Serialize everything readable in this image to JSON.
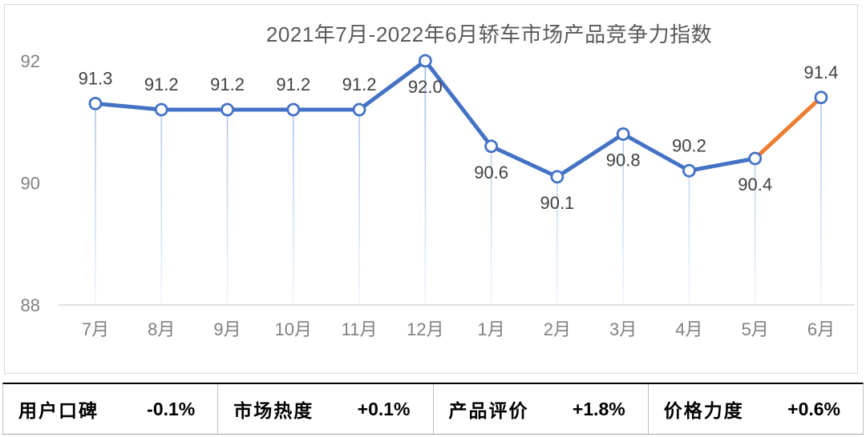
{
  "chart_data": {
    "type": "line",
    "title": "2021年7月-2022年6月轿车市场产品竞争力指数",
    "categories": [
      "7月",
      "8月",
      "9月",
      "10月",
      "11月",
      "12月",
      "1月",
      "2月",
      "3月",
      "4月",
      "5月",
      "6月"
    ],
    "series": [
      {
        "name": "轿车市场产品竞争力指数",
        "values": [
          91.3,
          91.2,
          91.2,
          91.2,
          91.2,
          92.0,
          90.6,
          90.1,
          90.8,
          90.2,
          90.4,
          91.4
        ]
      }
    ],
    "data_labels": [
      "91.3",
      "91.2",
      "91.2",
      "91.2",
      "91.2",
      "92.0",
      "90.6",
      "90.1",
      "90.8",
      "90.2",
      "90.4",
      "91.4"
    ],
    "label_positions": [
      "above",
      "above",
      "above",
      "above",
      "above",
      "below",
      "below",
      "below",
      "below",
      "above",
      "below",
      "above"
    ],
    "y_ticks": [
      "92",
      "90",
      "88"
    ],
    "y_tick_values": [
      92,
      90,
      88
    ],
    "ylim": [
      88,
      92.6
    ],
    "grid": "x-axis-baseline-only",
    "legend": "none",
    "highlight_segment": {
      "from_index": 10,
      "to_index": 11
    },
    "droplines": true,
    "colors": {
      "line": "#4472C4",
      "highlight": "#ED7D31",
      "marker_fill": "#FFFFFF",
      "marker_stroke": "#4472C4",
      "dropline": "#8FB3E4",
      "axis_line": "#D9D9D9",
      "axis_text": "#808080",
      "data_label_text": "#404040",
      "title_text": "#595959"
    }
  },
  "stats_bar": {
    "items": [
      {
        "label": "用户口碑",
        "value": "-0.1%"
      },
      {
        "label": "市场热度",
        "value": "+0.1%"
      },
      {
        "label": "产品评价",
        "value": "+1.8%"
      },
      {
        "label": "价格力度",
        "value": "+0.6%"
      }
    ]
  }
}
